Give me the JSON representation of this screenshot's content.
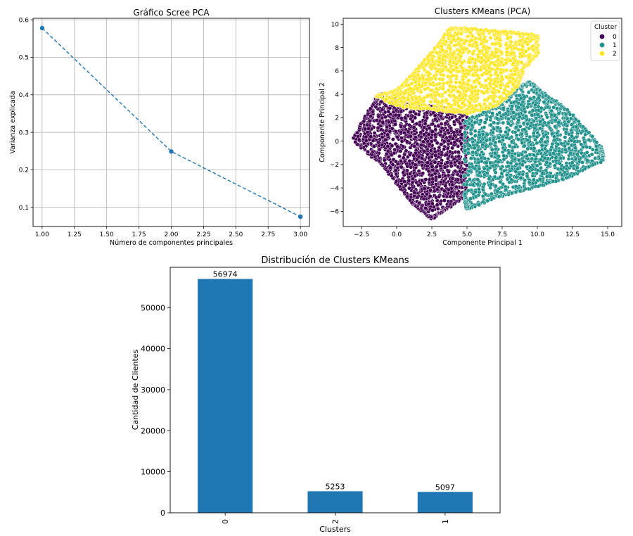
{
  "chart_data": [
    {
      "type": "line",
      "title": "Gráfico Scree PCA",
      "xlabel": "Número de componentes principales",
      "ylabel": "Varianza explicada",
      "x": [
        1.0,
        2.0,
        3.0
      ],
      "series": [
        {
          "values": [
            0.578,
            0.249,
            0.075
          ]
        }
      ],
      "xlim": [
        0.93,
        3.07
      ],
      "ylim": [
        0.049,
        0.604
      ],
      "xticks": [
        "1.00",
        "1.25",
        "1.50",
        "1.75",
        "2.00",
        "2.25",
        "2.50",
        "2.75",
        "3.00"
      ],
      "yticks": [
        "0.1",
        "0.2",
        "0.3",
        "0.4",
        "0.5",
        "0.6"
      ],
      "grid": true,
      "line_style": "dashed",
      "color": "#1f77b4"
    },
    {
      "type": "scatter",
      "title": "Clusters KMeans (PCA)",
      "xlabel": "Componente Principal 1",
      "ylabel": "Componente Principal 2",
      "xlim": [
        -3.8,
        16.0
      ],
      "ylim": [
        -7.3,
        10.5
      ],
      "xticks": [
        "−2.5",
        "0.0",
        "2.5",
        "5.0",
        "7.5",
        "10.0",
        "12.5",
        "15.0"
      ],
      "yticks": [
        "−6",
        "−4",
        "−2",
        "0",
        "2",
        "4",
        "6",
        "8",
        "10"
      ],
      "grid": false,
      "legend": {
        "title": "Cluster",
        "position": "top-right"
      },
      "series": [
        {
          "name": "0",
          "color": "#440154",
          "region": [
            [
              -3.0,
              0.3
            ],
            [
              -1.5,
              3.5
            ],
            [
              -1.0,
              4.0
            ],
            [
              0.5,
              3.2
            ],
            [
              3.5,
              2.8
            ],
            [
              5.0,
              2.4
            ],
            [
              4.9,
              -4.6
            ],
            [
              3.5,
              -5.8
            ],
            [
              2.5,
              -6.6
            ],
            [
              1.0,
              -5.2
            ],
            [
              -1.0,
              -2.0
            ],
            [
              -3.0,
              0.0
            ]
          ]
        },
        {
          "name": "1",
          "color": "#21918c",
          "region": [
            [
              4.8,
              1.6
            ],
            [
              7.0,
              2.9
            ],
            [
              8.8,
              4.7
            ],
            [
              9.5,
              5.0
            ],
            [
              10.5,
              4.0
            ],
            [
              12.0,
              2.8
            ],
            [
              14.5,
              -0.5
            ],
            [
              14.7,
              -1.6
            ],
            [
              12.0,
              -3.2
            ],
            [
              9.0,
              -4.2
            ],
            [
              7.0,
              -4.8
            ],
            [
              5.0,
              -5.8
            ],
            [
              4.8,
              -4.5
            ]
          ]
        },
        {
          "name": "2",
          "color": "#fde725",
          "region": [
            [
              -1.5,
              3.8
            ],
            [
              0.0,
              4.3
            ],
            [
              1.0,
              5.5
            ],
            [
              2.5,
              7.5
            ],
            [
              3.8,
              9.6
            ],
            [
              5.0,
              9.6
            ],
            [
              8.0,
              9.3
            ],
            [
              10.0,
              9.0
            ],
            [
              10.0,
              7.5
            ],
            [
              9.0,
              6.2
            ],
            [
              8.5,
              4.6
            ],
            [
              7.0,
              3.0
            ],
            [
              5.0,
              2.4
            ],
            [
              2.0,
              2.8
            ],
            [
              0.0,
              3.0
            ]
          ]
        }
      ]
    },
    {
      "type": "bar",
      "title": "Distribución de Clusters KMeans",
      "xlabel": "Clusters",
      "ylabel": "Cantidad de Clientes",
      "categories": [
        "0",
        "2",
        "1"
      ],
      "values": [
        56974,
        5253,
        5097
      ],
      "data_labels": [
        "56974",
        "5253",
        "5097"
      ],
      "ylim": [
        0,
        59822
      ],
      "yticks": [
        "0",
        "10000",
        "20000",
        "30000",
        "40000",
        "50000"
      ],
      "grid": false,
      "color": "#1f77b4"
    }
  ]
}
